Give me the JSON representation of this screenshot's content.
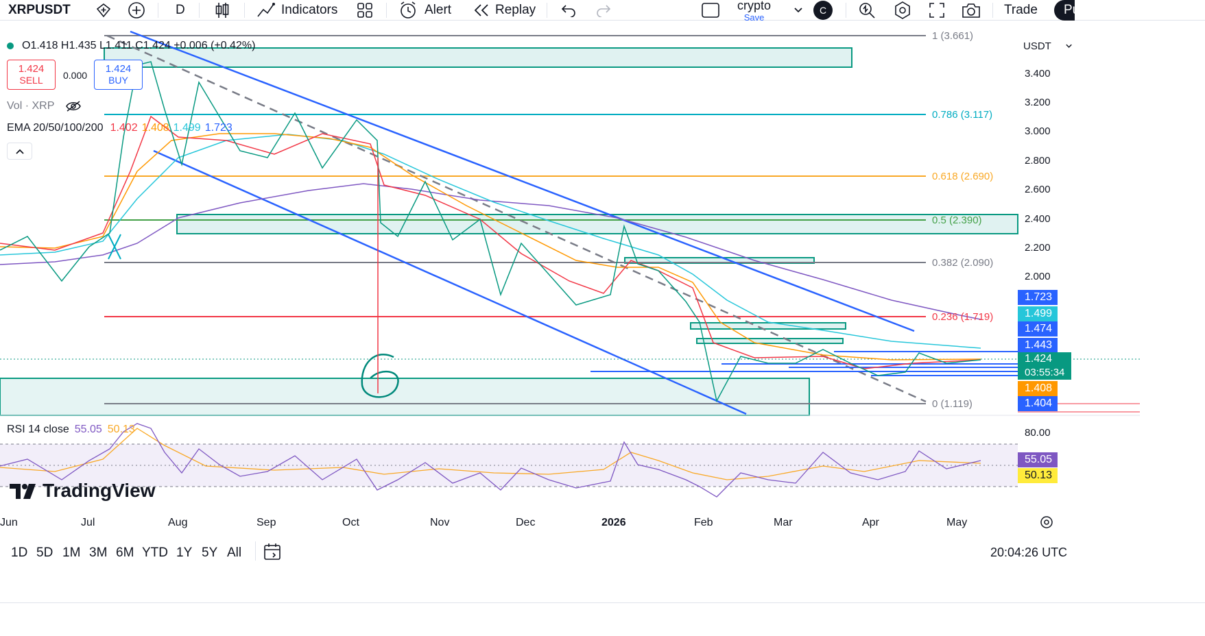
{
  "toolbar": {
    "symbol": "XRPUSDT",
    "interval": "D",
    "indicators_label": "Indicators",
    "alert_label": "Alert",
    "replay_label": "Replay",
    "layout_name": "crypto",
    "layout_save": "Save",
    "avatar_letter": "C",
    "trade_label": "Trade",
    "publish_label": "Pu"
  },
  "legend": {
    "ohlc": "O1.418 H1.435 L1.411 C1.424 +0.006 (+0.42%)",
    "sell_price": "1.424",
    "sell_label": "SELL",
    "spread": "0.000",
    "buy_price": "1.424",
    "buy_label": "BUY",
    "volume": "Vol · XRP",
    "ema_title": "EMA 20/50/100/200",
    "ema_values": [
      "1.402",
      "1.408",
      "1.499",
      "1.723"
    ],
    "rsi_title": "RSI 14 close",
    "rsi_value": "55.05",
    "rsi_ma": "50.13"
  },
  "price_axis": {
    "currency": "USDT",
    "ticks": [
      "3.400",
      "3.200",
      "3.000",
      "2.800",
      "2.600",
      "2.400",
      "2.200",
      "2.000"
    ],
    "tags": [
      {
        "value": "1.723",
        "color": "#2962ff"
      },
      {
        "value": "1.499",
        "color": "#26c6da"
      },
      {
        "value": "1.474",
        "color": "#2962ff"
      },
      {
        "value": "1.443",
        "color": "#2962ff"
      },
      {
        "value": "1.424",
        "color": "#089981"
      },
      {
        "value": "03:55:34",
        "color": "#089981"
      },
      {
        "value": "1.408",
        "color": "#ff9800"
      },
      {
        "value": "1.404",
        "color": "#2962ff"
      }
    ]
  },
  "rsi_axis": {
    "level": "80.00",
    "tags": [
      {
        "value": "55.05",
        "color": "#7e57c2"
      },
      {
        "value": "50.13",
        "color": "#ffeb3b"
      }
    ]
  },
  "fibs": [
    {
      "label": "1 (3.661)",
      "color": "#787b86"
    },
    {
      "label": "0.786 (3.117)",
      "color": "#00acc1"
    },
    {
      "label": "0.618 (2.690)",
      "color": "#f9a825"
    },
    {
      "label": "0.5 (2.390)",
      "color": "#43a047"
    },
    {
      "label": "0.382 (2.090)",
      "color": "#787b86"
    },
    {
      "label": "0.236 (1.719)",
      "color": "#f23645"
    },
    {
      "label": "0 (1.119)",
      "color": "#787b86"
    }
  ],
  "time_axis": [
    "Jun",
    "Jul",
    "Aug",
    "Sep",
    "Oct",
    "Nov",
    "Dec",
    "2026",
    "Feb",
    "Mar",
    "Apr",
    "May"
  ],
  "annotation": "6",
  "watermark": "TradingView",
  "bottom": {
    "ranges": [
      "1D",
      "5D",
      "1M",
      "3M",
      "6M",
      "YTD",
      "1Y",
      "5Y",
      "All"
    ],
    "clock": "20:04:26 UTC"
  }
}
